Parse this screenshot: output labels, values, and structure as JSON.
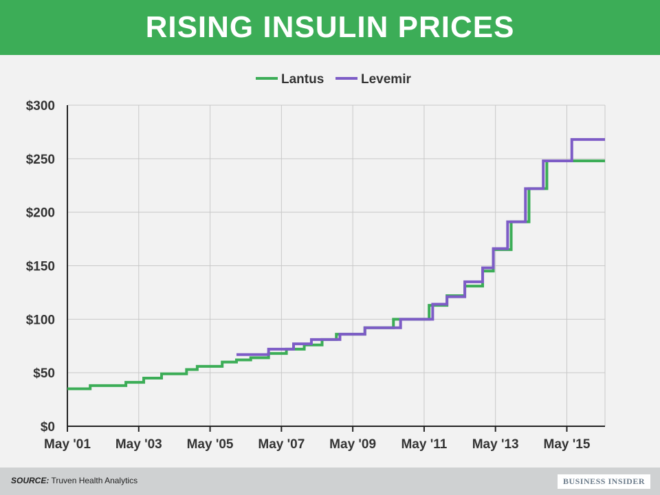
{
  "header": {
    "title": "RISING INSULIN PRICES"
  },
  "footer": {
    "source_label": "SOURCE:",
    "source_text": "Truven Health Analytics",
    "brand": "BUSINESS INSIDER"
  },
  "colors": {
    "lantus": "#3cad57",
    "levemir": "#7d5cc6",
    "header": "#3cad57"
  },
  "chart_data": {
    "type": "line",
    "step": true,
    "title": "RISING INSULIN PRICES",
    "xlabel": "",
    "ylabel": "",
    "x_range": [
      2001.33,
      2016.4
    ],
    "ylim": [
      0,
      300
    ],
    "y_ticks": [
      0,
      50,
      100,
      150,
      200,
      250,
      300
    ],
    "y_tick_labels": [
      "$0",
      "$50",
      "$100",
      "$150",
      "$200",
      "$250",
      "$300"
    ],
    "x_ticks": [
      2001.33,
      2003.33,
      2005.33,
      2007.33,
      2009.33,
      2011.33,
      2013.33,
      2015.33
    ],
    "x_tick_labels": [
      "May '01",
      "May '03",
      "May '05",
      "May '07",
      "May '09",
      "May '11",
      "May '13",
      "May '15"
    ],
    "legend_position": "top-center",
    "grid": true,
    "series": [
      {
        "name": "Lantus",
        "color": "#3cad57",
        "points": [
          [
            2001.33,
            35
          ],
          [
            2001.97,
            38
          ],
          [
            2002.97,
            41
          ],
          [
            2003.47,
            45
          ],
          [
            2003.97,
            49
          ],
          [
            2004.67,
            53
          ],
          [
            2004.97,
            56
          ],
          [
            2005.67,
            60
          ],
          [
            2006.07,
            62
          ],
          [
            2006.47,
            64
          ],
          [
            2006.97,
            68
          ],
          [
            2007.47,
            72
          ],
          [
            2007.97,
            76
          ],
          [
            2008.47,
            81
          ],
          [
            2008.87,
            86
          ],
          [
            2009.67,
            92
          ],
          [
            2010.47,
            100
          ],
          [
            2011.47,
            113
          ],
          [
            2011.97,
            122
          ],
          [
            2012.47,
            131
          ],
          [
            2012.97,
            145
          ],
          [
            2013.27,
            165
          ],
          [
            2013.77,
            191
          ],
          [
            2014.27,
            222
          ],
          [
            2014.77,
            248
          ],
          [
            2016.4,
            248
          ]
        ]
      },
      {
        "name": "Levemir",
        "color": "#7d5cc6",
        "points": [
          [
            2006.07,
            67
          ],
          [
            2006.97,
            72
          ],
          [
            2007.67,
            77
          ],
          [
            2008.17,
            81
          ],
          [
            2008.97,
            86
          ],
          [
            2009.67,
            92
          ],
          [
            2010.67,
            100
          ],
          [
            2011.57,
            114
          ],
          [
            2011.97,
            121
          ],
          [
            2012.47,
            135
          ],
          [
            2012.97,
            148
          ],
          [
            2013.27,
            166
          ],
          [
            2013.67,
            191
          ],
          [
            2014.17,
            222
          ],
          [
            2014.67,
            248
          ],
          [
            2015.47,
            268
          ],
          [
            2016.4,
            268
          ]
        ]
      }
    ]
  }
}
